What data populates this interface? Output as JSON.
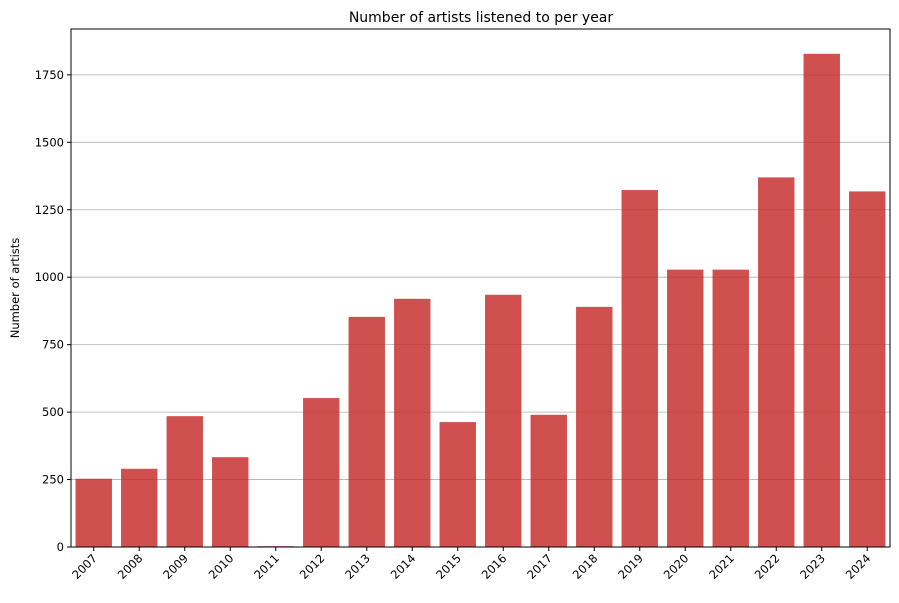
{
  "chart_data": {
    "type": "bar",
    "title": "Number of artists listened to per year",
    "xlabel": "",
    "ylabel": "Number of artists",
    "categories": [
      "2007",
      "2008",
      "2009",
      "2010",
      "2011",
      "2012",
      "2013",
      "2014",
      "2015",
      "2016",
      "2017",
      "2018",
      "2019",
      "2020",
      "2021",
      "2022",
      "2023",
      "2024"
    ],
    "values": [
      253,
      290,
      485,
      333,
      3,
      552,
      853,
      920,
      463,
      935,
      490,
      890,
      1323,
      1028,
      1028,
      1370,
      1828,
      1318
    ],
    "ylim": [
      0,
      1920
    ],
    "yticks": [
      0,
      250,
      500,
      750,
      1000,
      1250,
      1500,
      1750
    ],
    "grid": "y",
    "legend": "none",
    "bar_color": "#c62828",
    "grid_color": "#b0b0b0"
  }
}
